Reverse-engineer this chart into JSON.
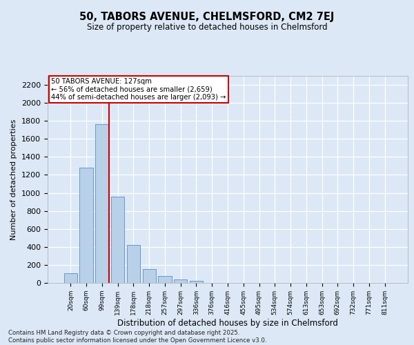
{
  "title1": "50, TABORS AVENUE, CHELMSFORD, CM2 7EJ",
  "title2": "Size of property relative to detached houses in Chelmsford",
  "xlabel": "Distribution of detached houses by size in Chelmsford",
  "ylabel": "Number of detached properties",
  "annotation_title": "50 TABORS AVENUE: 127sqm",
  "annotation_line1": "← 56% of detached houses are smaller (2,659)",
  "annotation_line2": "44% of semi-detached houses are larger (2,093) →",
  "footer1": "Contains HM Land Registry data © Crown copyright and database right 2025.",
  "footer2": "Contains public sector information licensed under the Open Government Licence v3.0.",
  "categories": [
    "20sqm",
    "60sqm",
    "99sqm",
    "139sqm",
    "178sqm",
    "218sqm",
    "257sqm",
    "297sqm",
    "336sqm",
    "376sqm",
    "416sqm",
    "455sqm",
    "495sqm",
    "534sqm",
    "574sqm",
    "613sqm",
    "653sqm",
    "692sqm",
    "732sqm",
    "771sqm",
    "811sqm"
  ],
  "values": [
    110,
    1280,
    1760,
    960,
    420,
    155,
    75,
    40,
    25,
    0,
    0,
    0,
    0,
    0,
    0,
    0,
    0,
    0,
    0,
    0,
    0
  ],
  "bar_color": "#b8d0e8",
  "bar_edge_color": "#6898c8",
  "vline_color": "#cc0000",
  "background_color": "#dce8f5",
  "ylim": [
    0,
    2300
  ],
  "yticks": [
    0,
    200,
    400,
    600,
    800,
    1000,
    1200,
    1400,
    1600,
    1800,
    2000,
    2200
  ],
  "annotation_box_color": "#ffffff",
  "annotation_box_edge": "#cc0000",
  "vline_bar_index": 2
}
